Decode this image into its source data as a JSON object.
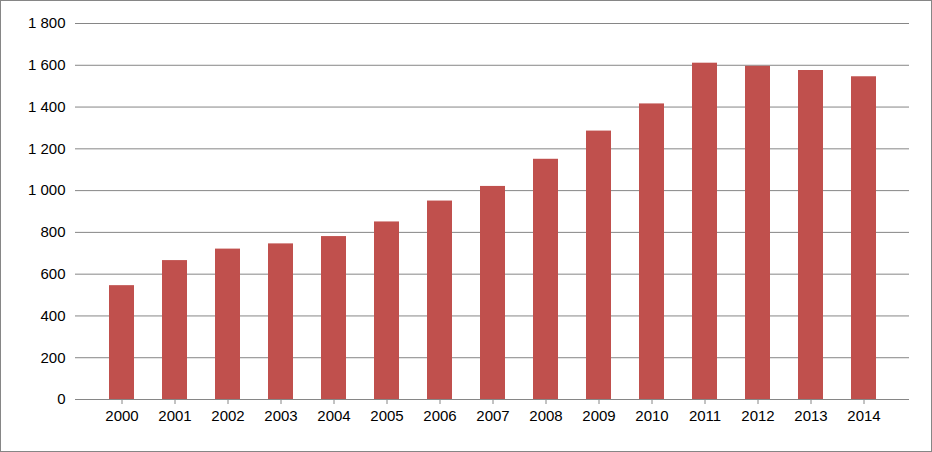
{
  "chart_data": {
    "type": "bar",
    "categories": [
      "2000",
      "2001",
      "2002",
      "2003",
      "2004",
      "2005",
      "2006",
      "2007",
      "2008",
      "2009",
      "2010",
      "2011",
      "2012",
      "2013",
      "2014"
    ],
    "values": [
      545,
      665,
      720,
      745,
      780,
      850,
      950,
      1020,
      1150,
      1285,
      1415,
      1610,
      1595,
      1575,
      1545
    ],
    "color": "#c0504d",
    "ylim": [
      0,
      1800
    ],
    "yticks": [
      0,
      200,
      400,
      600,
      800,
      {
        "value": 1000,
        "label": "1 000"
      },
      {
        "value": 1200,
        "label": "1 200"
      },
      {
        "value": 1400,
        "label": "1 400"
      },
      {
        "value": 1600,
        "label": "1 600"
      },
      {
        "value": 1800,
        "label": "1 800"
      }
    ],
    "grid": true
  }
}
